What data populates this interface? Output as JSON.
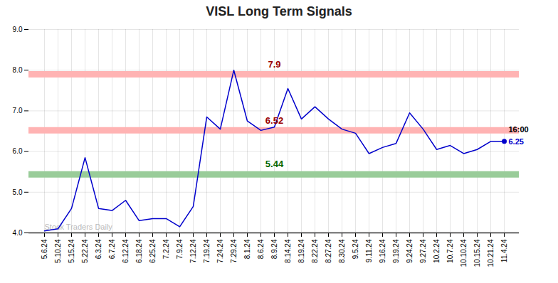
{
  "chart_data": {
    "type": "line",
    "title": "VISL Long Term Signals",
    "categories": [
      "5.6.24",
      "5.10.24",
      "5.15.24",
      "5.22.24",
      "6.3.24",
      "6.7.24",
      "6.12.24",
      "6.18.24",
      "6.25.24",
      "7.2.24",
      "7.9.24",
      "7.12.24",
      "7.19.24",
      "7.24.24",
      "7.29.24",
      "8.1.24",
      "8.6.24",
      "8.9.24",
      "8.14.24",
      "8.19.24",
      "8.22.24",
      "8.27.24",
      "8.30.24",
      "9.5.24",
      "9.11.24",
      "9.16.24",
      "9.19.24",
      "9.24.24",
      "9.27.24",
      "10.2.24",
      "10.7.24",
      "10.10.24",
      "10.15.24",
      "10.21.24",
      "11.4.24"
    ],
    "values": [
      4.05,
      4.1,
      4.6,
      5.85,
      4.6,
      4.55,
      4.8,
      4.3,
      4.35,
      4.35,
      4.15,
      4.65,
      6.85,
      6.55,
      8.0,
      6.75,
      6.52,
      6.6,
      7.55,
      6.8,
      7.1,
      6.8,
      6.55,
      6.45,
      5.95,
      6.1,
      6.2,
      6.95,
      6.55,
      6.05,
      6.15,
      5.95,
      6.05,
      6.25,
      6.25
    ],
    "color": "#0000cc",
    "ylim": [
      4.0,
      9.0
    ],
    "yticks": [
      4,
      5,
      6,
      7,
      8,
      9
    ],
    "grid": true,
    "hlines": [
      {
        "value": 7.9,
        "label": "7.9",
        "color": "#ffb3b3",
        "label_color": "#990000"
      },
      {
        "value": 6.52,
        "label": "6.52",
        "color": "#ffb3b3",
        "label_color": "#990000"
      },
      {
        "value": 5.44,
        "label": "5.44",
        "color": "#99cc99",
        "label_color": "#006600"
      }
    ],
    "last_point": {
      "label": "16:00",
      "value_label": "6.25",
      "color": "#0000cc"
    },
    "annotations": [
      {
        "text": "Stock Traders Daily",
        "color": "#bbbbbb"
      }
    ]
  }
}
